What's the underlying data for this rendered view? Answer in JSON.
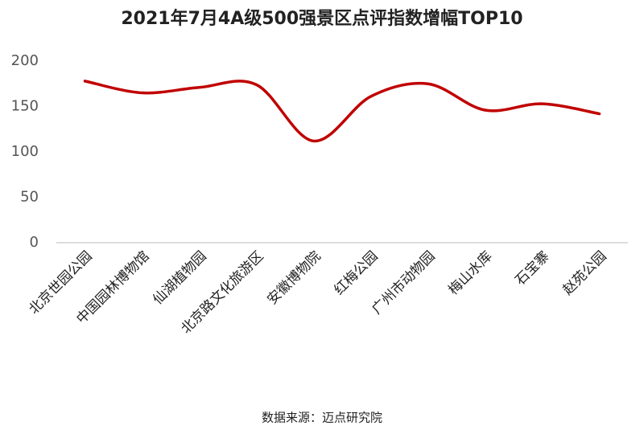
{
  "chart_data": {
    "type": "line",
    "title": "2021年7月4A级500强景区点评指数增幅TOP10",
    "categories": [
      "北京世园公园",
      "中国园林博物馆",
      "仙湖植物园",
      "北京路文化旅游区",
      "安徽博物院",
      "红梅公园",
      "广州市动物园",
      "梅山水库",
      "石宝寨",
      "赵苑公园"
    ],
    "values": [
      178,
      165,
      171,
      174,
      112,
      161,
      175,
      146,
      153,
      142
    ],
    "color": "#c00000",
    "ylim": [
      0,
      200
    ],
    "yticks": [
      0,
      50,
      100,
      150,
      200
    ],
    "smooth": true,
    "source": "数据来源：迈点研究院"
  }
}
